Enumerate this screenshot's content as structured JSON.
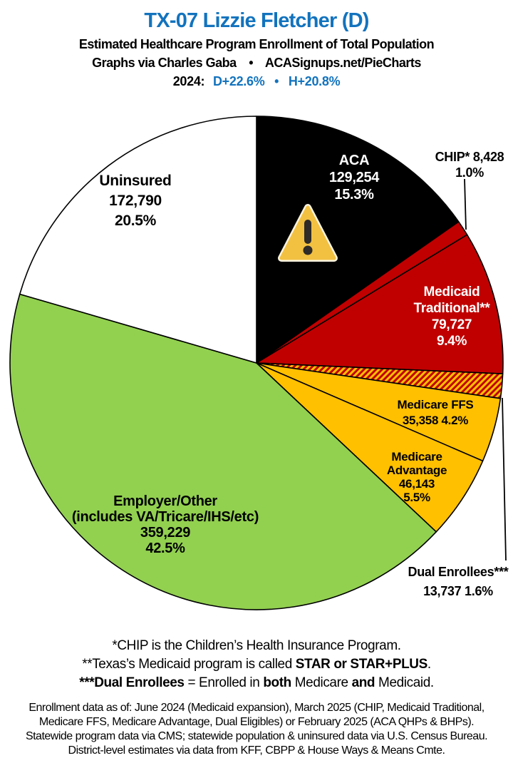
{
  "header": {
    "title": "TX-07 Lizzie Fletcher (D)",
    "subtitle": "Estimated Healthcare Program Enrollment of Total Population",
    "credit_left": "Graphs via Charles Gaba",
    "bullet": "•",
    "credit_right": "ACASignups.net/PieCharts",
    "year_label": "2024:",
    "d_lean": "D+22.6%",
    "h_lean": "H+20.8%",
    "accent_blue": "#1273BE"
  },
  "chart_data": {
    "type": "pie",
    "title": "TX-07 Lizzie Fletcher (D) — Estimated Healthcare Program Enrollment of Total Population",
    "start_angle_deg": 0,
    "direction": "clockwise",
    "annotation_icon": "warning-triangle-on-aca-slice",
    "colors": {
      "black": "#000000",
      "red": "#C00000",
      "gold": "#FFC000",
      "green": "#92D050",
      "white": "#FFFFFF"
    },
    "slices": [
      {
        "id": "aca",
        "name": "ACA",
        "value": 129254,
        "pct": 15.3,
        "color": "#000000",
        "text_color": "#ffffff",
        "label_lines": [
          "ACA",
          "129,254",
          "15.3%"
        ]
      },
      {
        "id": "chip",
        "name": "CHIP",
        "value": 8428,
        "pct": 1.0,
        "color": "#C00000",
        "text_color": "#000000",
        "label_lines": [
          "CHIP* 8,428",
          "1.0%"
        ]
      },
      {
        "id": "medicaid",
        "name": "Medicaid Traditional",
        "value": 79727,
        "pct": 9.4,
        "color": "#C00000",
        "text_color": "#ffffff",
        "label_lines": [
          "Medicaid",
          "Traditional**",
          "79,727",
          "9.4%"
        ]
      },
      {
        "id": "dual",
        "name": "Dual Enrollees",
        "value": 13737,
        "pct": 1.6,
        "color": "hatch",
        "text_color": "#000000",
        "label_lines": [
          "Dual Enrollees***",
          "13,737 1.6%"
        ]
      },
      {
        "id": "ffs",
        "name": "Medicare FFS",
        "value": 35358,
        "pct": 4.2,
        "color": "#FFC000",
        "text_color": "#000000",
        "label_lines": [
          "Medicare FFS",
          "35,358 4.2%"
        ]
      },
      {
        "id": "advantage",
        "name": "Medicare Advantage",
        "value": 46143,
        "pct": 5.5,
        "color": "#FFC000",
        "text_color": "#000000",
        "label_lines": [
          "Medicare",
          "Advantage",
          "46,143",
          "5.5%"
        ]
      },
      {
        "id": "employer",
        "name": "Employer/Other",
        "value": 359229,
        "pct": 42.5,
        "color": "#92D050",
        "text_color": "#000000",
        "label_lines": [
          "Employer/Other",
          "(includes VA/Tricare/IHS/etc)",
          "359,229",
          "42.5%"
        ]
      },
      {
        "id": "uninsured",
        "name": "Uninsured",
        "value": 172790,
        "pct": 20.5,
        "color": "#FFFFFF",
        "text_color": "#000000",
        "label_lines": [
          "Uninsured",
          "172,790",
          "20.5%"
        ]
      }
    ]
  },
  "footnotes": {
    "line1": "*CHIP is the Children’s Health Insurance Program.",
    "line2_pre": "**Texas’s Medicaid program is called ",
    "line2_bold": "STAR or STAR+PLUS",
    "line2_post": ".",
    "line3_bold1": "***Dual Enrollees",
    "line3_mid1": " = Enrolled in ",
    "line3_bold2": "both",
    "line3_mid2": " Medicare ",
    "line3_bold3": "and",
    "line3_post": " Medicaid."
  },
  "source_lines": {
    "0": "Enrollment data as of: June 2024 (Medicaid expansion), March 2025 (CHIP, Medicaid Traditional,",
    "1": "Medicare FFS, Medicare Advantage, Dual Eligibles) or February 2025 (ACA QHPs & BHPs).",
    "2": "Statewide program data via CMS; statewide population & uninsured data via U.S. Census Bureau.",
    "3": "District-level estimates via data from KFF, CBPP & House Ways & Means Cmte."
  }
}
